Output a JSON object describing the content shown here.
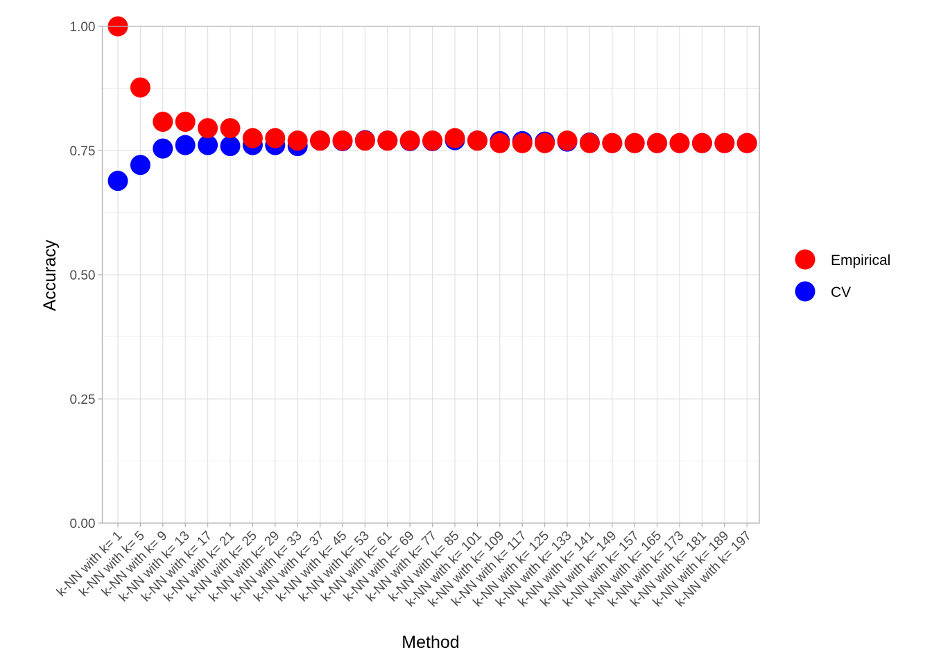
{
  "chart_data": {
    "type": "scatter",
    "title": "",
    "xlabel": "Method",
    "ylabel": "Accuracy",
    "ylim": [
      0,
      1
    ],
    "yticks": [
      0,
      0.25,
      0.5,
      0.75,
      1
    ],
    "ytick_labels": [
      "0.00",
      "0.25",
      "0.50",
      "0.75",
      "1.00"
    ],
    "grid": true,
    "legend_position": "right",
    "categories": [
      "k-NN with k= 1",
      "k-NN with k= 5",
      "k-NN with k= 9",
      "k-NN with k= 13",
      "k-NN with k= 17",
      "k-NN with k= 21",
      "k-NN with k= 25",
      "k-NN with k= 29",
      "k-NN with k= 33",
      "k-NN with k= 37",
      "k-NN with k= 45",
      "k-NN with k= 53",
      "k-NN with k= 61",
      "k-NN with k= 69",
      "k-NN with k= 77",
      "k-NN with k= 85",
      "k-NN with k= 101",
      "k-NN with k= 109",
      "k-NN with k= 117",
      "k-NN with k= 125",
      "k-NN with k= 133",
      "k-NN with k= 141",
      "k-NN with k= 149",
      "k-NN with k= 157",
      "k-NN with k= 165",
      "k-NN with k= 173",
      "k-NN with k= 181",
      "k-NN with k= 189",
      "k-NN with k= 197"
    ],
    "series": [
      {
        "name": "CV",
        "color": "#0000ff",
        "values": [
          0.689,
          0.721,
          0.754,
          0.761,
          0.761,
          0.759,
          0.761,
          0.761,
          0.759,
          0.77,
          0.769,
          0.771,
          0.77,
          0.769,
          0.769,
          0.771,
          0.77,
          0.769,
          0.769,
          0.768,
          0.768,
          0.766,
          0.765,
          0.765,
          0.765,
          0.765,
          0.765,
          0.765,
          0.765
        ]
      },
      {
        "name": "Empirical",
        "color": "#ff0000",
        "values": [
          1.0,
          0.877,
          0.808,
          0.808,
          0.795,
          0.795,
          0.775,
          0.775,
          0.77,
          0.77,
          0.77,
          0.77,
          0.77,
          0.77,
          0.77,
          0.775,
          0.77,
          0.765,
          0.765,
          0.765,
          0.77,
          0.765,
          0.765,
          0.765,
          0.765,
          0.765,
          0.765,
          0.765,
          0.765
        ]
      }
    ],
    "legend": [
      {
        "name": "Empirical",
        "color": "#ff0000"
      },
      {
        "name": "CV",
        "color": "#0000ff"
      }
    ]
  }
}
